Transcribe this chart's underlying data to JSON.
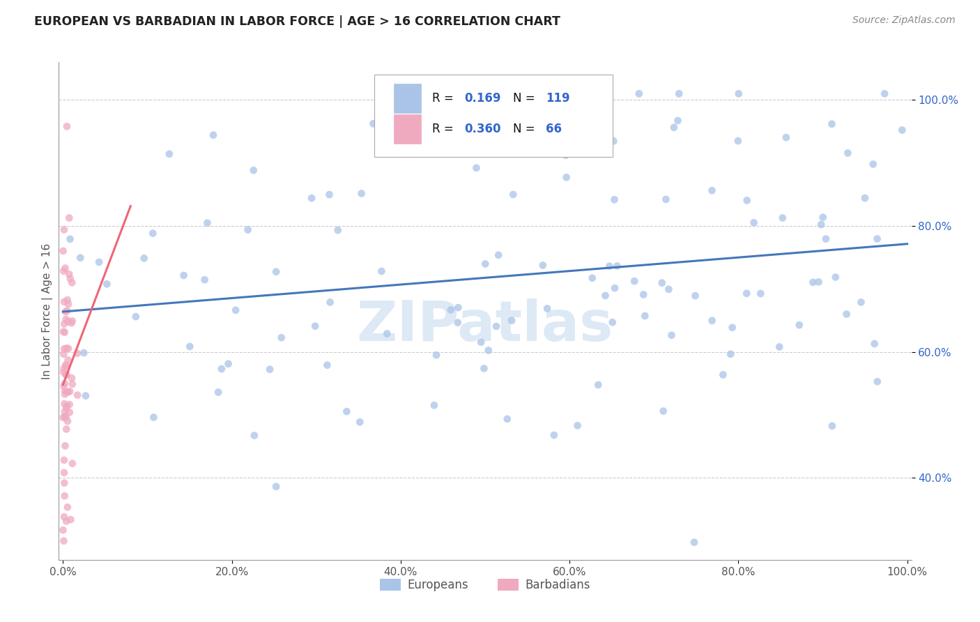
{
  "title": "EUROPEAN VS BARBADIAN IN LABOR FORCE | AGE > 16 CORRELATION CHART",
  "source": "Source: ZipAtlas.com",
  "ylabel": "In Labor Force | Age > 16",
  "european_R": 0.169,
  "european_N": 119,
  "barbadian_R": 0.36,
  "barbadian_N": 66,
  "european_color": "#aac4e8",
  "barbadian_color": "#f0aac0",
  "european_line_color": "#4477bb",
  "barbadian_line_color": "#ee6677",
  "legend_R_color": "#3366cc",
  "watermark": "ZIPatlas",
  "eu_seed": 12345,
  "ba_seed": 99999,
  "ytick_color": "#3366cc",
  "xtick_color": "#555555"
}
